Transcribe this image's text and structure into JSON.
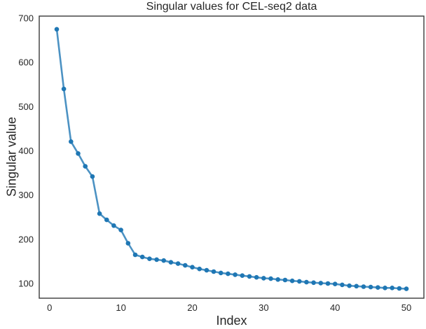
{
  "figure": {
    "background": "#ffffff"
  },
  "chart_data": {
    "type": "line",
    "title": "Singular values for CEL-seq2 data",
    "xlabel": "Index",
    "ylabel": "Singular value",
    "x": [
      1,
      2,
      3,
      4,
      5,
      6,
      7,
      8,
      9,
      10,
      11,
      12,
      13,
      14,
      15,
      16,
      17,
      18,
      19,
      20,
      21,
      22,
      23,
      24,
      25,
      26,
      27,
      28,
      29,
      30,
      31,
      32,
      33,
      34,
      35,
      36,
      37,
      38,
      39,
      40,
      41,
      42,
      43,
      44,
      45,
      46,
      47,
      48,
      49,
      50
    ],
    "values": [
      675,
      540,
      421,
      394,
      365,
      342,
      258,
      244,
      231,
      221,
      191,
      165,
      160,
      156,
      154,
      152,
      148,
      145,
      141,
      137,
      133,
      130,
      127,
      124,
      122,
      120,
      118,
      116,
      114,
      112,
      111,
      109,
      108,
      106,
      105,
      103,
      102,
      101,
      100,
      99,
      97,
      95,
      94,
      93,
      92,
      91,
      90,
      90,
      89,
      88
    ],
    "x_ticks": [
      0,
      10,
      20,
      30,
      40,
      50
    ],
    "y_ticks": [
      100,
      200,
      300,
      400,
      500,
      600,
      700
    ],
    "xlim": [
      -1.45,
      52.45
    ],
    "ylim": [
      66.8,
      704.8
    ],
    "grid": false,
    "legend": null,
    "marker": "circle",
    "line_color": "#1f77b4",
    "marker_color": "#1f77b4",
    "spine_color": "#3a3a3a",
    "text_color": "#262626"
  }
}
